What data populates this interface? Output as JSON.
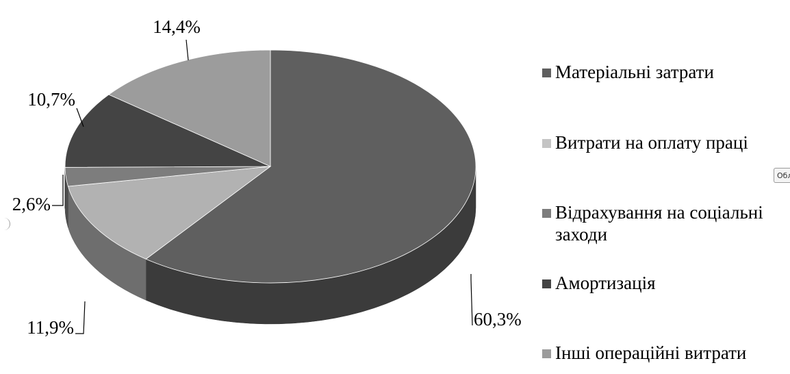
{
  "chart_data": {
    "type": "pie",
    "style": "3d",
    "title": "",
    "categories": [
      "Матеріальні затрати",
      "Витрати на оплату праці",
      "Відрахування на соціальні заходи",
      "Амортизація",
      "Інші операційні витрати"
    ],
    "values": [
      60.3,
      11.9,
      2.6,
      10.7,
      14.4
    ],
    "value_labels": [
      "60,3%",
      "11,9%",
      "2,6%",
      "10,7%",
      "14,4%"
    ],
    "colors": [
      "#5f5f5f",
      "#b2b2b2",
      "#7d7d7d",
      "#444444",
      "#9c9c9c"
    ],
    "legend_position": "right"
  },
  "legend": {
    "items": [
      {
        "label": "Матеріальні затрати",
        "color": "#5f5f5f"
      },
      {
        "label": "Витрати на оплату праці",
        "color": "#c4c4c4"
      },
      {
        "label": "Відрахування на соціальні заходи",
        "color": "#7d7d7d"
      },
      {
        "label": "Амортизація",
        "color": "#444444"
      },
      {
        "label": "Інші операційні витрати",
        "color": "#9c9c9c"
      }
    ]
  },
  "ui": {
    "tab_text": "Обл"
  }
}
